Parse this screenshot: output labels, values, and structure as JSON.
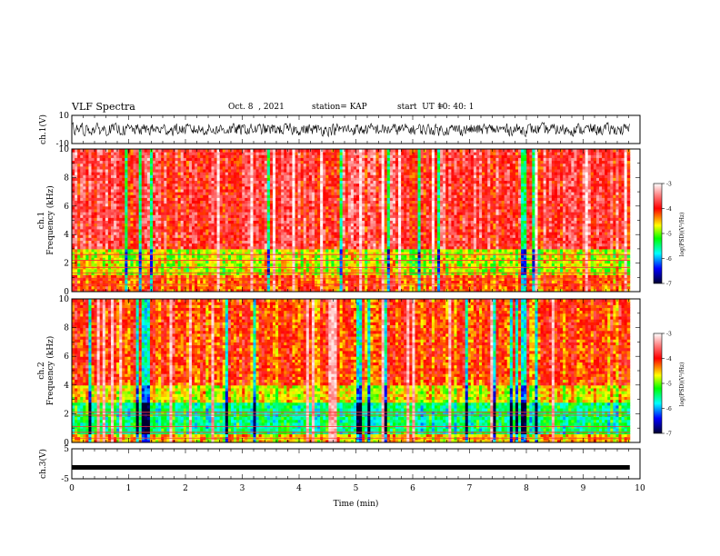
{
  "header": {
    "title": "VLF Spectra",
    "date": "Oct. 8  , 2021",
    "station": "station= KAP",
    "start_label": "start  UT =",
    "start_time": "10: 40: 1"
  },
  "chart_data": [
    {
      "id": "ch1-waveform",
      "type": "line",
      "ylabel": "ch.1(V)",
      "ylim": [
        -10,
        10
      ],
      "yticks": [
        "10",
        "-10"
      ],
      "xlim": [
        0,
        10
      ],
      "description_values": {
        "range": [
          -6,
          6
        ]
      }
    },
    {
      "id": "ch1-spectrogram",
      "type": "heatmap",
      "ylabel_top": "ch.1",
      "ylabel": "Frequency  (kHz)",
      "ylim": [
        0,
        10
      ],
      "yticks": [
        "0",
        "2",
        "4",
        "6",
        "8",
        "10"
      ],
      "xlim": [
        0,
        9.82
      ],
      "colorbar": {
        "label": "log(PSD)(V²/Hz)",
        "range": [
          -7,
          -3
        ],
        "ticks": [
          "-3",
          "-4",
          "-5",
          "-6",
          "-7"
        ]
      }
    },
    {
      "id": "ch2-spectrogram",
      "type": "heatmap",
      "ylabel_top": "ch.2",
      "ylabel": "Frequency  (kHz)",
      "ylim": [
        0,
        10
      ],
      "yticks": [
        "0",
        "2",
        "4",
        "6",
        "8",
        "10"
      ],
      "xlim": [
        0,
        9.82
      ],
      "colorbar": {
        "label": "log(PSD)(V²/Hz)",
        "range": [
          -7,
          -3
        ],
        "ticks": [
          "-3",
          "-4",
          "-5",
          "-6",
          "-7"
        ]
      }
    },
    {
      "id": "ch3-waveform",
      "type": "line",
      "ylabel": "ch.3(V)",
      "ylim": [
        -5,
        5
      ],
      "yticks": [
        "5",
        "-5"
      ],
      "constant_value": -1.2,
      "xlim": [
        0,
        10
      ]
    }
  ],
  "xaxis": {
    "label": "Time  (min)",
    "ticks": [
      "0",
      "1",
      "2",
      "3",
      "4",
      "5",
      "6",
      "7",
      "8",
      "9",
      "10"
    ],
    "range": [
      0,
      10
    ]
  }
}
